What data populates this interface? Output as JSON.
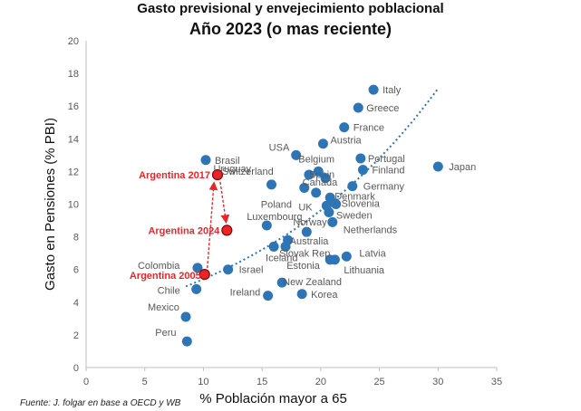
{
  "chart_data": {
    "type": "scatter",
    "title": "Gasto previsional y envejecimiento poblacional",
    "subtitle": "Año 2023  (o mas reciente)",
    "xlabel": "% Población mayor a 65",
    "ylabel": "Gasto en Pensiones (% PBI)",
    "xlim": [
      0,
      35
    ],
    "ylim": [
      0,
      20
    ],
    "xticks": [
      0,
      5,
      10,
      15,
      20,
      25,
      30,
      35
    ],
    "yticks": [
      0,
      2,
      4,
      6,
      8,
      10,
      12,
      14,
      16,
      18,
      20
    ],
    "grid": false,
    "legend": "none",
    "trendline": "exponential",
    "colors": {
      "points": "#2e75b6",
      "highlight": "#e8262a",
      "trend": "#2e75b6",
      "label": "#595959"
    },
    "points": [
      {
        "label": "Italy",
        "x": 24.5,
        "y": 17.0
      },
      {
        "label": "Greece",
        "x": 23.2,
        "y": 15.9
      },
      {
        "label": "France",
        "x": 22.0,
        "y": 14.7
      },
      {
        "label": "USA",
        "x": 17.9,
        "y": 13.0
      },
      {
        "label": "Austria",
        "x": 20.2,
        "y": 13.7
      },
      {
        "label": "Belgium",
        "x": 19.8,
        "y": 12.0
      },
      {
        "label": "Portugal",
        "x": 23.4,
        "y": 12.8
      },
      {
        "label": "Spain",
        "x": 20.4,
        "y": 11.6
      },
      {
        "label": "Finland",
        "x": 23.6,
        "y": 12.1
      },
      {
        "label": "Japan",
        "x": 30.0,
        "y": 12.3
      },
      {
        "label": "Brasil",
        "x": 10.2,
        "y": 12.7
      },
      {
        "label": "Switzerland",
        "x": 19.0,
        "y": 11.8
      },
      {
        "label": "Uruguay",
        "x": 15.8,
        "y": 11.2
      },
      {
        "label": "Canada",
        "x": 19.6,
        "y": 10.7
      },
      {
        "label": "Germany",
        "x": 22.7,
        "y": 11.1
      },
      {
        "label": "Poland",
        "x": 18.6,
        "y": 11.0
      },
      {
        "label": "Denmark",
        "x": 20.8,
        "y": 10.4
      },
      {
        "label": "Slovenia",
        "x": 21.3,
        "y": 10.0
      },
      {
        "label": "UK",
        "x": 20.5,
        "y": 9.9
      },
      {
        "label": "Luxembourg",
        "x": 15.4,
        "y": 8.7
      },
      {
        "label": "Sweden",
        "x": 20.7,
        "y": 9.5
      },
      {
        "label": "Norway",
        "x": 18.8,
        "y": 8.3
      },
      {
        "label": "Netherlands",
        "x": 21.0,
        "y": 8.9
      },
      {
        "label": "Australia",
        "x": 17.2,
        "y": 7.8
      },
      {
        "label": "Slovak Rep",
        "x": 16.0,
        "y": 7.4
      },
      {
        "label": "Latvia",
        "x": 22.2,
        "y": 6.8
      },
      {
        "label": "Iceland",
        "x": 17.0,
        "y": 7.4
      },
      {
        "label": "Lithuania",
        "x": 21.2,
        "y": 6.6
      },
      {
        "label": "Estonia",
        "x": 20.8,
        "y": 6.6
      },
      {
        "label": "Israel",
        "x": 12.1,
        "y": 6.0
      },
      {
        "label": "Colombia",
        "x": 9.5,
        "y": 6.1
      },
      {
        "label": "New Zealand",
        "x": 16.7,
        "y": 5.2
      },
      {
        "label": "Ireland",
        "x": 15.5,
        "y": 4.4
      },
      {
        "label": "Korea",
        "x": 18.4,
        "y": 4.5
      },
      {
        "label": "Chile",
        "x": 9.4,
        "y": 4.8
      },
      {
        "label": "Mexico",
        "x": 8.5,
        "y": 3.1
      },
      {
        "label": "Peru",
        "x": 8.6,
        "y": 1.6
      }
    ],
    "highlights": [
      {
        "label": "Argentina 2017",
        "x": 11.2,
        "y": 11.8
      },
      {
        "label": "Argentina 2024",
        "x": 12.0,
        "y": 8.4
      },
      {
        "label": "Argentina 2005",
        "x": 10.1,
        "y": 5.7
      }
    ]
  },
  "source": "Fuente: J. folgar en base a OECD y WB"
}
